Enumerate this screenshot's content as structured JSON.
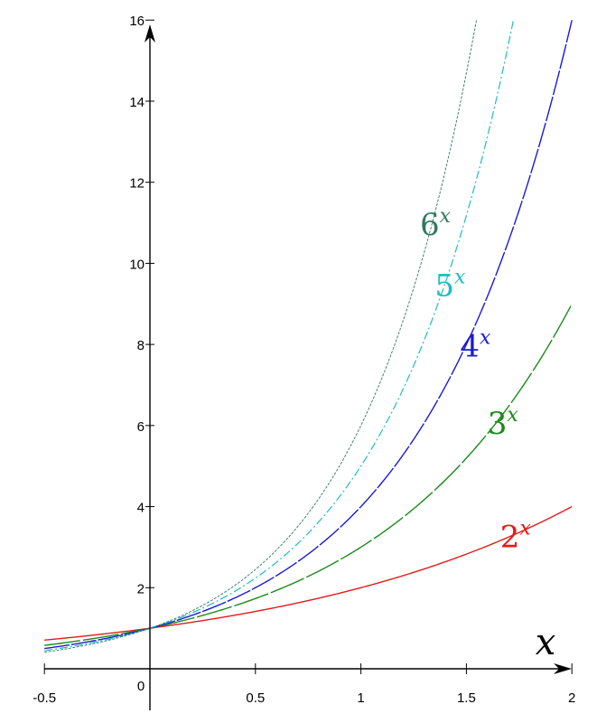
{
  "chart_data": {
    "type": "line",
    "title": "",
    "xlabel": "x",
    "ylabel": "",
    "xlim": [
      -0.5,
      2
    ],
    "ylim": [
      0,
      16
    ],
    "grid": false,
    "x_ticks": [
      {
        "value": -0.5,
        "label": "-0.5"
      },
      {
        "value": 0,
        "label": "0"
      },
      {
        "value": 0.5,
        "label": "0.5"
      },
      {
        "value": 1,
        "label": "1"
      },
      {
        "value": 1.5,
        "label": "1.5"
      },
      {
        "value": 2,
        "label": "2"
      }
    ],
    "y_ticks": [
      {
        "value": 2,
        "label": "2"
      },
      {
        "value": 4,
        "label": "4"
      },
      {
        "value": 6,
        "label": "6"
      },
      {
        "value": 8,
        "label": "8"
      },
      {
        "value": 10,
        "label": "10"
      },
      {
        "value": 12,
        "label": "12"
      },
      {
        "value": 14,
        "label": "14"
      },
      {
        "value": 16,
        "label": "16"
      }
    ],
    "series": [
      {
        "base_label": "2",
        "exp_label": "x",
        "base": 2,
        "color": "#e31a1c",
        "dash": "solid",
        "x": [
          -0.5,
          0,
          0.5,
          1,
          1.5,
          2
        ],
        "y": [
          0.71,
          1,
          1.41,
          2,
          2.83,
          4
        ]
      },
      {
        "base_label": "3",
        "exp_label": "x",
        "base": 3,
        "color": "#1a8a1a",
        "dash": "long",
        "x": [
          -0.5,
          0,
          0.5,
          1,
          1.5,
          2
        ],
        "y": [
          0.58,
          1,
          1.73,
          3,
          5.2,
          9
        ]
      },
      {
        "base_label": "4",
        "exp_label": "x",
        "base": 4,
        "color": "#1a1ad6",
        "dash": "longer",
        "x": [
          -0.5,
          0,
          0.5,
          1,
          1.5,
          2
        ],
        "y": [
          0.5,
          1,
          2,
          4,
          8,
          16
        ]
      },
      {
        "base_label": "5",
        "exp_label": "x",
        "base": 5,
        "color": "#1fbcc4",
        "dash": "dashdot",
        "x": [
          -0.5,
          0,
          0.5,
          1,
          1.5,
          1.72
        ],
        "y": [
          0.45,
          1,
          2.24,
          5,
          11.18,
          16
        ]
      },
      {
        "base_label": "6",
        "exp_label": "x",
        "base": 6,
        "color": "#2e7a5e",
        "dash": "fine",
        "x": [
          -0.5,
          0,
          0.5,
          1,
          1.5,
          1.55
        ],
        "y": [
          0.41,
          1,
          2.45,
          6,
          14.7,
          16
        ]
      }
    ],
    "annotations": [
      {
        "series": 0,
        "x": 1.66,
        "y": 3.0
      },
      {
        "series": 1,
        "x": 1.6,
        "y": 5.8
      },
      {
        "series": 2,
        "x": 1.47,
        "y": 7.7
      },
      {
        "series": 3,
        "x": 1.35,
        "y": 9.2
      },
      {
        "series": 4,
        "x": 1.28,
        "y": 10.7
      }
    ]
  }
}
